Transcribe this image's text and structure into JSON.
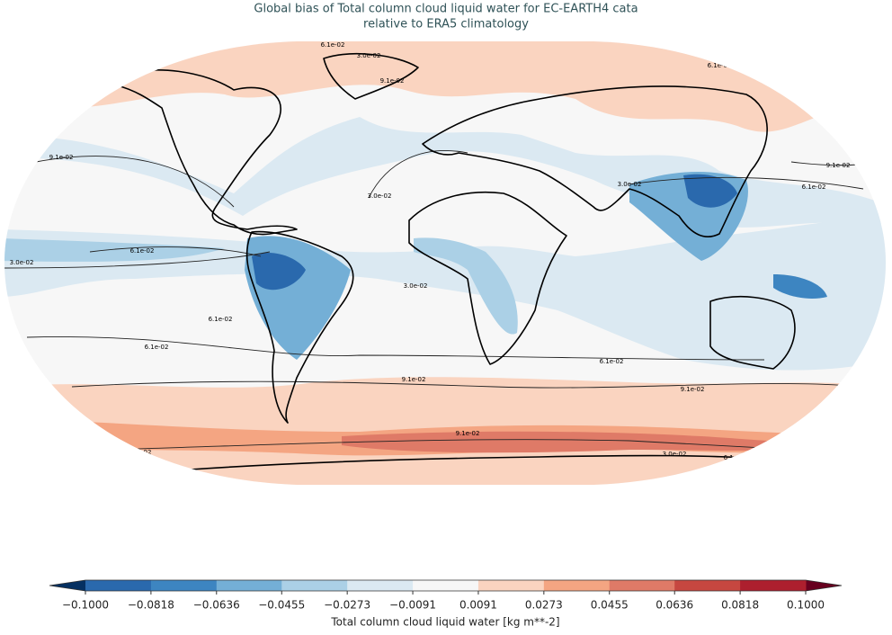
{
  "title": [
    "Global bias of Total column cloud liquid water for EC-EARTH4 cata",
    "relative to ERA5 climatology"
  ],
  "colorbar": {
    "label": "Total column cloud liquid water [kg m**-2]",
    "ticks": [
      {
        "value": -0.1,
        "label": "−0.1000"
      },
      {
        "value": -0.0818,
        "label": "−0.0818"
      },
      {
        "value": -0.0636,
        "label": "−0.0636"
      },
      {
        "value": -0.0455,
        "label": "−0.0455"
      },
      {
        "value": -0.0273,
        "label": "−0.0273"
      },
      {
        "value": -0.0091,
        "label": "−0.0091"
      },
      {
        "value": 0.0091,
        "label": "0.0091"
      },
      {
        "value": 0.0273,
        "label": "0.0273"
      },
      {
        "value": 0.0455,
        "label": "0.0455"
      },
      {
        "value": 0.0636,
        "label": "0.0636"
      },
      {
        "value": 0.0818,
        "label": "0.0818"
      },
      {
        "value": 0.1,
        "label": "0.1000"
      }
    ],
    "colors": [
      "#2a69ad",
      "#3d85c1",
      "#74afd6",
      "#abd0e6",
      "#dbe9f2",
      "#f7f7f7",
      "#fad4c0",
      "#f4a582",
      "#df7a67",
      "#c64740",
      "#ad1f2e"
    ],
    "under_color": "#053061",
    "over_color": "#67001f"
  },
  "contour_labels": [
    "6.1e-02",
    "3.0e-02",
    "6.1e-02",
    "9.1e-02",
    "9.1e-02",
    "9.1e-02",
    "3.0e-02",
    "6.1e-02",
    "3.0e-02",
    "6.1e-02",
    "3.0e-02",
    "3.0e-02",
    "6.1e-02",
    "6.1e-02",
    "6.1e-02",
    "9.1e-02",
    "9.1e-02",
    "9.1e-02",
    "9.1e-02",
    "3.0e-02",
    "6.1e-02",
    "3.0e-02"
  ]
}
